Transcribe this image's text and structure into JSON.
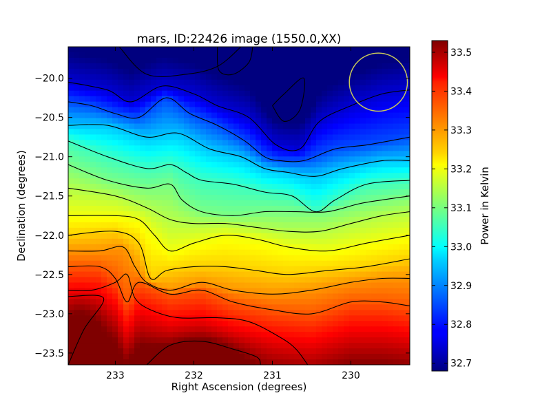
{
  "chart_data": {
    "type": "heatmap",
    "title": "mars, ID:22426 image (1550.0,XX)",
    "xlabel": "Right Ascension (degrees)",
    "ylabel": "Declination (degrees)",
    "colorbar_label": "Power in Kelvin",
    "colormap": "jet",
    "x_direction": "reversed",
    "xlim": [
      233.6,
      229.25
    ],
    "ylim": [
      -23.65,
      -19.6
    ],
    "x_ticks": [
      233,
      232,
      231,
      230
    ],
    "x_tick_labels": [
      "233",
      "232",
      "231",
      "230"
    ],
    "y_ticks": [
      -20.0,
      -20.5,
      -21.0,
      -21.5,
      -22.0,
      -22.5,
      -23.0,
      -23.5
    ],
    "y_tick_labels": [
      "−20.0",
      "−20.5",
      "−21.0",
      "−21.5",
      "−22.0",
      "−22.5",
      "−23.0",
      "−23.5"
    ],
    "colorbar_range": [
      32.68,
      33.53
    ],
    "colorbar_ticks": [
      32.7,
      32.8,
      32.9,
      33.0,
      33.1,
      33.2,
      33.3,
      33.4,
      33.5
    ],
    "colorbar_tick_labels": [
      "32.7",
      "32.8",
      "32.9",
      "33.0",
      "33.1",
      "33.2",
      "33.3",
      "33.4",
      "33.5"
    ],
    "contours": [
      {
        "level": 33.45,
        "points": [
          [
            233.6,
            -23.65
          ],
          [
            233.4,
            -23.2
          ],
          [
            233.15,
            -22.8
          ],
          [
            233.6,
            -22.78
          ]
        ]
      },
      {
        "level": 33.45,
        "points": [
          [
            232.6,
            -23.65
          ],
          [
            232.3,
            -23.4
          ],
          [
            231.9,
            -23.35
          ],
          [
            231.5,
            -23.45
          ],
          [
            231.2,
            -23.55
          ],
          [
            231.15,
            -23.65
          ]
        ]
      },
      {
        "level": 33.4,
        "points": [
          [
            233.6,
            -22.7
          ],
          [
            233.3,
            -22.7
          ],
          [
            233.0,
            -22.6
          ],
          [
            232.85,
            -22.5
          ],
          [
            232.75,
            -22.8
          ],
          [
            232.55,
            -22.95
          ],
          [
            232.2,
            -23.05
          ],
          [
            231.7,
            -23.05
          ],
          [
            231.3,
            -23.1
          ],
          [
            230.9,
            -23.3
          ],
          [
            230.7,
            -23.45
          ],
          [
            230.55,
            -23.65
          ]
        ]
      },
      {
        "level": 33.35,
        "points": [
          [
            233.6,
            -22.4
          ],
          [
            233.2,
            -22.4
          ],
          [
            233.0,
            -22.55
          ],
          [
            232.85,
            -22.85
          ],
          [
            232.7,
            -22.6
          ],
          [
            232.3,
            -22.75
          ],
          [
            231.9,
            -22.7
          ],
          [
            231.5,
            -22.85
          ],
          [
            231.0,
            -22.95
          ],
          [
            230.5,
            -23.0
          ],
          [
            230.0,
            -22.85
          ],
          [
            229.6,
            -22.85
          ],
          [
            229.25,
            -22.9
          ]
        ]
      },
      {
        "level": 33.3,
        "points": [
          [
            233.6,
            -22.2
          ],
          [
            233.2,
            -22.2
          ],
          [
            232.9,
            -22.15
          ],
          [
            232.75,
            -22.4
          ],
          [
            232.6,
            -22.6
          ],
          [
            232.3,
            -22.7
          ],
          [
            231.9,
            -22.6
          ],
          [
            231.5,
            -22.7
          ],
          [
            231.0,
            -22.75
          ],
          [
            230.5,
            -22.7
          ],
          [
            230.0,
            -22.6
          ],
          [
            229.6,
            -22.55
          ],
          [
            229.25,
            -22.55
          ]
        ]
      },
      {
        "level": 33.25,
        "points": [
          [
            233.6,
            -22.0
          ],
          [
            233.0,
            -21.95
          ],
          [
            232.7,
            -22.1
          ],
          [
            232.55,
            -22.55
          ],
          [
            232.35,
            -22.45
          ],
          [
            232.0,
            -22.4
          ],
          [
            231.6,
            -22.4
          ],
          [
            231.2,
            -22.45
          ],
          [
            230.8,
            -22.5
          ],
          [
            230.3,
            -22.45
          ],
          [
            229.8,
            -22.4
          ],
          [
            229.25,
            -22.3
          ]
        ]
      },
      {
        "level": 33.2,
        "points": [
          [
            233.6,
            -21.75
          ],
          [
            233.0,
            -21.75
          ],
          [
            232.7,
            -21.8
          ],
          [
            232.5,
            -22.0
          ],
          [
            232.3,
            -22.2
          ],
          [
            232.0,
            -22.1
          ],
          [
            231.6,
            -22.0
          ],
          [
            231.2,
            -22.05
          ],
          [
            230.8,
            -22.15
          ],
          [
            230.3,
            -22.2
          ],
          [
            229.8,
            -22.1
          ],
          [
            229.25,
            -22.0
          ]
        ]
      },
      {
        "level": 33.15,
        "points": [
          [
            233.6,
            -21.4
          ],
          [
            233.0,
            -21.5
          ],
          [
            232.6,
            -21.65
          ],
          [
            232.3,
            -21.8
          ],
          [
            232.0,
            -21.85
          ],
          [
            231.6,
            -21.85
          ],
          [
            231.2,
            -21.9
          ],
          [
            230.8,
            -21.95
          ],
          [
            230.4,
            -21.95
          ],
          [
            230.0,
            -21.85
          ],
          [
            229.6,
            -21.75
          ],
          [
            229.25,
            -21.7
          ]
        ]
      },
      {
        "level": 33.1,
        "points": [
          [
            233.6,
            -21.1
          ],
          [
            233.1,
            -21.3
          ],
          [
            232.6,
            -21.4
          ],
          [
            232.3,
            -21.35
          ],
          [
            232.15,
            -21.55
          ],
          [
            231.9,
            -21.7
          ],
          [
            231.5,
            -21.75
          ],
          [
            231.1,
            -21.7
          ],
          [
            230.7,
            -21.7
          ],
          [
            230.3,
            -21.7
          ],
          [
            229.9,
            -21.6
          ],
          [
            229.6,
            -21.55
          ],
          [
            229.25,
            -21.5
          ]
        ]
      },
      {
        "level": 33.05,
        "points": [
          [
            233.6,
            -20.8
          ],
          [
            233.1,
            -21.0
          ],
          [
            232.6,
            -21.15
          ],
          [
            232.3,
            -21.1
          ],
          [
            232.1,
            -21.2
          ],
          [
            231.9,
            -21.3
          ],
          [
            231.5,
            -21.35
          ],
          [
            231.1,
            -21.45
          ],
          [
            230.75,
            -21.5
          ],
          [
            230.45,
            -21.7
          ],
          [
            230.2,
            -21.55
          ],
          [
            229.8,
            -21.35
          ],
          [
            229.25,
            -21.3
          ]
        ]
      },
      {
        "level": 32.95,
        "points": [
          [
            233.6,
            -20.6
          ],
          [
            233.1,
            -20.6
          ],
          [
            232.6,
            -20.75
          ],
          [
            232.2,
            -20.7
          ],
          [
            231.8,
            -20.9
          ],
          [
            231.4,
            -21.0
          ],
          [
            231.1,
            -21.15
          ],
          [
            230.8,
            -21.2
          ],
          [
            230.45,
            -21.25
          ],
          [
            230.1,
            -21.15
          ],
          [
            229.6,
            -21.05
          ],
          [
            229.25,
            -21.05
          ]
        ]
      },
      {
        "level": 32.85,
        "points": [
          [
            233.6,
            -20.3
          ],
          [
            233.3,
            -20.35
          ],
          [
            233.0,
            -20.45
          ],
          [
            232.7,
            -20.5
          ],
          [
            232.35,
            -20.25
          ],
          [
            232.05,
            -20.45
          ],
          [
            231.7,
            -20.6
          ],
          [
            231.35,
            -20.8
          ],
          [
            231.1,
            -21.0
          ],
          [
            230.9,
            -21.05
          ],
          [
            230.6,
            -21.05
          ],
          [
            230.2,
            -20.9
          ],
          [
            229.8,
            -20.85
          ],
          [
            229.25,
            -20.75
          ]
        ]
      },
      {
        "level": 32.75,
        "points": [
          [
            233.6,
            -20.05
          ],
          [
            233.1,
            -20.15
          ],
          [
            232.8,
            -20.3
          ],
          [
            232.4,
            -20.1
          ],
          [
            232.0,
            -20.2
          ],
          [
            231.7,
            -20.35
          ],
          [
            231.3,
            -20.5
          ],
          [
            230.95,
            -20.85
          ],
          [
            230.65,
            -20.9
          ],
          [
            230.4,
            -20.55
          ],
          [
            230.0,
            -20.35
          ],
          [
            229.6,
            -20.2
          ],
          [
            229.25,
            -20.15
          ]
        ]
      },
      {
        "level": 32.7,
        "points": [
          [
            232.95,
            -19.6
          ],
          [
            232.6,
            -19.95
          ],
          [
            232.1,
            -19.95
          ],
          [
            231.7,
            -19.85
          ],
          [
            231.4,
            -19.6
          ]
        ]
      },
      {
        "level": 32.7,
        "points": [
          [
            231.7,
            -19.6
          ],
          [
            231.68,
            -19.9
          ],
          [
            231.5,
            -19.95
          ],
          [
            231.3,
            -19.8
          ],
          [
            231.25,
            -19.6
          ]
        ]
      },
      {
        "level": 32.68,
        "points": [
          [
            231.0,
            -20.35
          ],
          [
            230.85,
            -20.55
          ],
          [
            230.65,
            -20.4
          ],
          [
            230.6,
            -20.0
          ],
          [
            230.85,
            -20.2
          ],
          [
            231.0,
            -20.35
          ]
        ]
      }
    ],
    "annotations": [
      {
        "shape": "circle",
        "center": [
          229.65,
          -20.05
        ],
        "radius_deg": 0.37,
        "color": "#c8c85a"
      }
    ]
  }
}
